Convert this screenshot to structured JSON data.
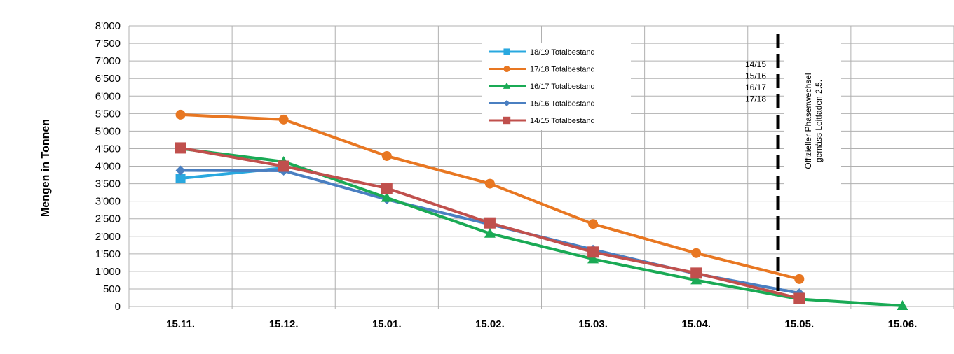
{
  "chart_data": {
    "type": "line",
    "ylabel": "Mengen in Tonnen",
    "xlabel": "",
    "categories": [
      "15.11.",
      "15.12.",
      "15.01.",
      "15.02.",
      "15.03.",
      "15.04.",
      "15.05.",
      "15.06."
    ],
    "y_ticks": [
      "0",
      "500",
      "1'000",
      "1'500",
      "2'000",
      "2'500",
      "3'000",
      "3'500",
      "4'000",
      "4'500",
      "5'000",
      "5'500",
      "6'000",
      "6'500",
      "7'000",
      "7'500",
      "8'000"
    ],
    "ylim": [
      0,
      8000
    ],
    "grid": true,
    "legend_position": "top-right",
    "series": [
      {
        "name": "18/19 Totalbestand",
        "color": "#29a8df",
        "marker": "square-small",
        "values": [
          3650,
          3950,
          null,
          null,
          null,
          null,
          null,
          null
        ]
      },
      {
        "name": "17/18 Totalbestand",
        "color": "#e87722",
        "marker": "circle",
        "values": [
          5470,
          5330,
          4290,
          3500,
          2350,
          1520,
          780,
          null
        ]
      },
      {
        "name": "16/17 Totalbestand",
        "color": "#1aaa55",
        "marker": "triangle",
        "values": [
          4500,
          4130,
          3100,
          2080,
          1350,
          750,
          210,
          20
        ]
      },
      {
        "name": "15/16 Totalbestand",
        "color": "#4a7fc1",
        "marker": "diamond",
        "values": [
          3880,
          3870,
          3050,
          2340,
          1620,
          930,
          380,
          null
        ]
      },
      {
        "name": "14/15 Totalbestand",
        "color": "#c0504d",
        "marker": "square",
        "values": [
          4520,
          4000,
          3370,
          2380,
          1550,
          950,
          230,
          null
        ]
      }
    ],
    "annotations": {
      "season_labels": [
        "14/15",
        "15/16",
        "16/17",
        "17/18"
      ],
      "phase_note": [
        "Offizieller Phasenwechsel",
        "gemäss Leitfaden 2.5."
      ],
      "phase_line_x": "15.05."
    }
  }
}
